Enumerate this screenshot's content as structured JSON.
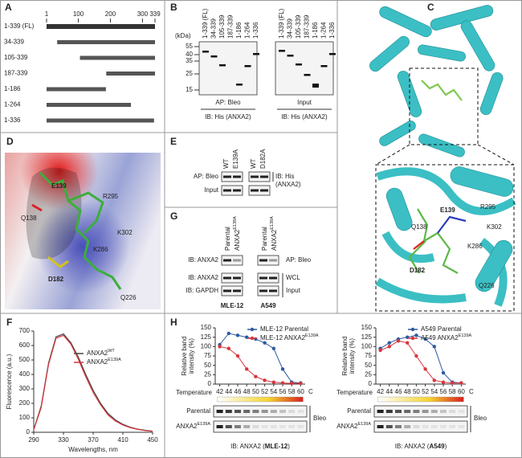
{
  "panels": {
    "A": {
      "letter": "A",
      "ruler": [
        1,
        100,
        200,
        300,
        339
      ],
      "constructs": [
        {
          "label": "1-339 (FL)",
          "start": 1,
          "end": 339
        },
        {
          "label": "34-339",
          "start": 34,
          "end": 339
        },
        {
          "label": "105-339",
          "start": 105,
          "end": 339
        },
        {
          "label": "187-339",
          "start": 187,
          "end": 339
        },
        {
          "label": "1-186",
          "start": 1,
          "end": 186
        },
        {
          "label": "1-264",
          "start": 1,
          "end": 264
        },
        {
          "label": "1-336",
          "start": 1,
          "end": 336
        }
      ]
    },
    "B": {
      "letter": "B",
      "lanes": [
        "1-339 (FL)",
        "34-339",
        "105-339",
        "187-339",
        "1-186",
        "1-264",
        "1-336"
      ],
      "unit": "(kDa)",
      "markers": [
        55,
        40,
        35,
        25,
        15
      ],
      "left_labels": [
        "AP: Bleo",
        "IB: His (ANXA2)"
      ],
      "right_labels": [
        "Input",
        "IB: His (ANXA2)"
      ]
    },
    "C": {
      "letter": "C",
      "residues": [
        "E139",
        "R295",
        "Q138",
        "K302",
        "K286",
        "D182",
        "Q226"
      ]
    },
    "D": {
      "letter": "D",
      "residues": [
        "E139",
        "Q138",
        "R295",
        "K302",
        "K286",
        "D182",
        "Q226"
      ]
    },
    "E": {
      "letter": "E",
      "lanes": [
        "WT",
        "E139A",
        "WT",
        "D182A"
      ],
      "rows": [
        "AP: Bleo",
        "Input"
      ],
      "side": [
        "IB: His",
        "(ANXA2)"
      ]
    },
    "G": {
      "letter": "G",
      "lanes": [
        {
          "text": "Parental"
        },
        {
          "text": "ANXA2",
          "sup": "E139A"
        },
        {
          "text": "Parental"
        },
        {
          "text": "ANXA2",
          "sup": "E139A"
        }
      ],
      "rows": [
        "IB: ANXA2",
        "IB: ANXA2",
        "IB: GAPDH"
      ],
      "side": [
        "AP: Bleo",
        "WCL",
        "Input"
      ],
      "cells": [
        "MLE-12",
        "A549"
      ]
    },
    "F": {
      "letter": "F"
    },
    "H": {
      "letter": "H"
    }
  },
  "chart_data": [
    {
      "type": "line",
      "xlabel": "Wavelengths, nm",
      "ylabel": "Fluorescence (a.u.)",
      "x": [
        290,
        300,
        310,
        320,
        330,
        340,
        350,
        360,
        370,
        380,
        390,
        400,
        410,
        420,
        430,
        440,
        450
      ],
      "xlim": [
        290,
        450
      ],
      "xticks": [
        290,
        330,
        370,
        410,
        450
      ],
      "ylim": [
        0,
        700
      ],
      "yticks": [
        0,
        100,
        200,
        300,
        400,
        500,
        600,
        700
      ],
      "series": [
        {
          "name": "ANXA2",
          "name_sup": "WT",
          "color": "#444444",
          "values": [
            20,
            180,
            480,
            660,
            680,
            620,
            520,
            400,
            290,
            200,
            130,
            85,
            55,
            35,
            22,
            14,
            8
          ]
        },
        {
          "name": "ANXA2",
          "name_sup": "E139A",
          "color": "#d9363e",
          "values": [
            18,
            170,
            470,
            650,
            670,
            610,
            505,
            385,
            275,
            190,
            120,
            78,
            50,
            32,
            20,
            12,
            7
          ]
        }
      ]
    },
    {
      "type": "line",
      "ylabel": [
        "Relative band",
        "intensity (%)"
      ],
      "xlabel": "Temperature",
      "unit": "C",
      "x": [
        42,
        44,
        46,
        48,
        50,
        52,
        54,
        56,
        58,
        60
      ],
      "xlim": [
        41,
        61
      ],
      "xticks": [
        42,
        44,
        46,
        48,
        50,
        52,
        54,
        56,
        58,
        60
      ],
      "ylim": [
        0,
        150
      ],
      "yticks": [
        0,
        25,
        50,
        75,
        100,
        125,
        150
      ],
      "series": [
        {
          "name": "MLE-12 Parental",
          "color": "#2c5aa0",
          "values": [
            105,
            135,
            130,
            125,
            120,
            110,
            95,
            40,
            5,
            3
          ]
        },
        {
          "name": "MLE-12 ANXA2",
          "name_sup": "E139A",
          "color": "#d9363e",
          "values": [
            100,
            95,
            75,
            40,
            20,
            10,
            5,
            3,
            2,
            2
          ]
        }
      ],
      "blot_rows": [
        {
          "text": "Parental",
          "color": "#2c5aa0"
        },
        {
          "text": "ANXA2",
          "sup": "E139A",
          "color": "#d9363e"
        }
      ],
      "blot_side": "Bleo",
      "caption": [
        "IB: ANXA2 (",
        "MLE-12",
        ")"
      ]
    },
    {
      "type": "line",
      "ylabel": [
        "Relative band",
        "intensity (%)"
      ],
      "xlabel": "Temperature",
      "unit": "C",
      "x": [
        42,
        44,
        46,
        48,
        50,
        52,
        54,
        56,
        58,
        60
      ],
      "xlim": [
        41,
        61
      ],
      "xticks": [
        42,
        44,
        46,
        48,
        50,
        52,
        54,
        56,
        58,
        60
      ],
      "ylim": [
        0,
        150
      ],
      "yticks": [
        0,
        25,
        50,
        75,
        100,
        125,
        150
      ],
      "series": [
        {
          "name": "A549 Parental",
          "color": "#2c5aa0",
          "values": [
            95,
            110,
            120,
            125,
            130,
            120,
            100,
            30,
            5,
            3
          ]
        },
        {
          "name": "A549 ANXA2",
          "name_sup": "E139A",
          "color": "#d9363e",
          "values": [
            90,
            100,
            115,
            110,
            75,
            40,
            10,
            5,
            3,
            3
          ]
        }
      ],
      "blot_rows": [
        {
          "text": "Parental",
          "color": "#2c5aa0"
        },
        {
          "text": "ANXA2",
          "sup": "E139A",
          "color": "#d9363e"
        }
      ],
      "blot_side": "Bleo",
      "caption": [
        "IB: ANXA2 (",
        "A549",
        ")"
      ]
    }
  ]
}
